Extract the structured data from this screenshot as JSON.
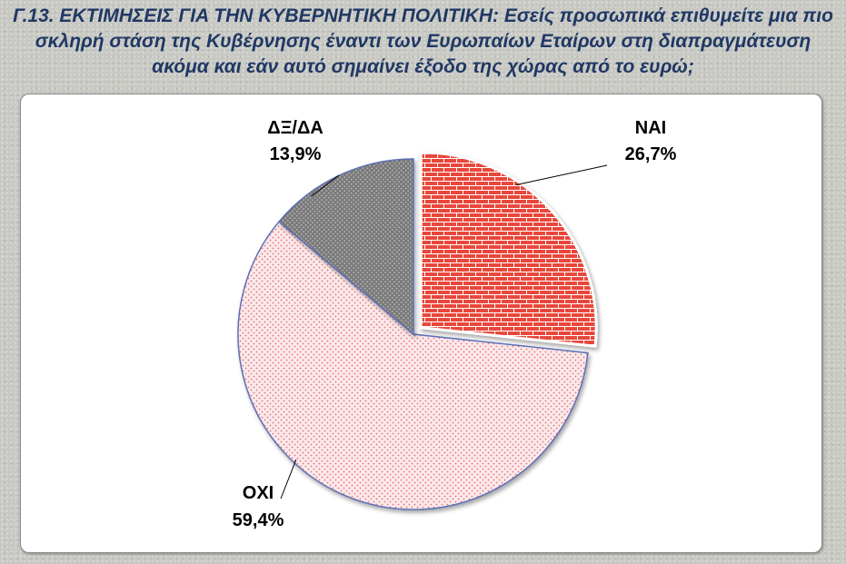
{
  "title": "Γ.13. ΕΚΤΙΜΗΣΕΙΣ ΓΙΑ ΤΗΝ ΚΥΒΕΡΝΗΤΙΚΗ ΠΟΛΙΤΙΚΗ: Εσείς προσωπικά επιθυμείτε μια πιο σκληρή στάση της Κυβέρνησης έναντι των Ευρωπαίων Εταίρων στη διαπραγμάτευση ακόμα και εάν αυτό σημαίνει έξοδο της χώρας από το ευρώ;",
  "chart_data": {
    "type": "pie",
    "slices": [
      {
        "label": "ΝΑΙ",
        "value": 26.7,
        "value_text": "26,7%",
        "color": "#e8473b",
        "pattern": "brick",
        "exploded": true
      },
      {
        "label": "ΟΧΙ",
        "value": 59.4,
        "value_text": "59,4%",
        "color": "#f6d9db",
        "pattern": "dots-red",
        "exploded": false
      },
      {
        "label": "ΔΞ/ΔΑ",
        "value": 13.9,
        "value_text": "13,9%",
        "color": "#8c8c8c",
        "pattern": "dots-grey",
        "exploded": false
      }
    ],
    "start": "12 o'clock",
    "direction": "clockwise"
  }
}
